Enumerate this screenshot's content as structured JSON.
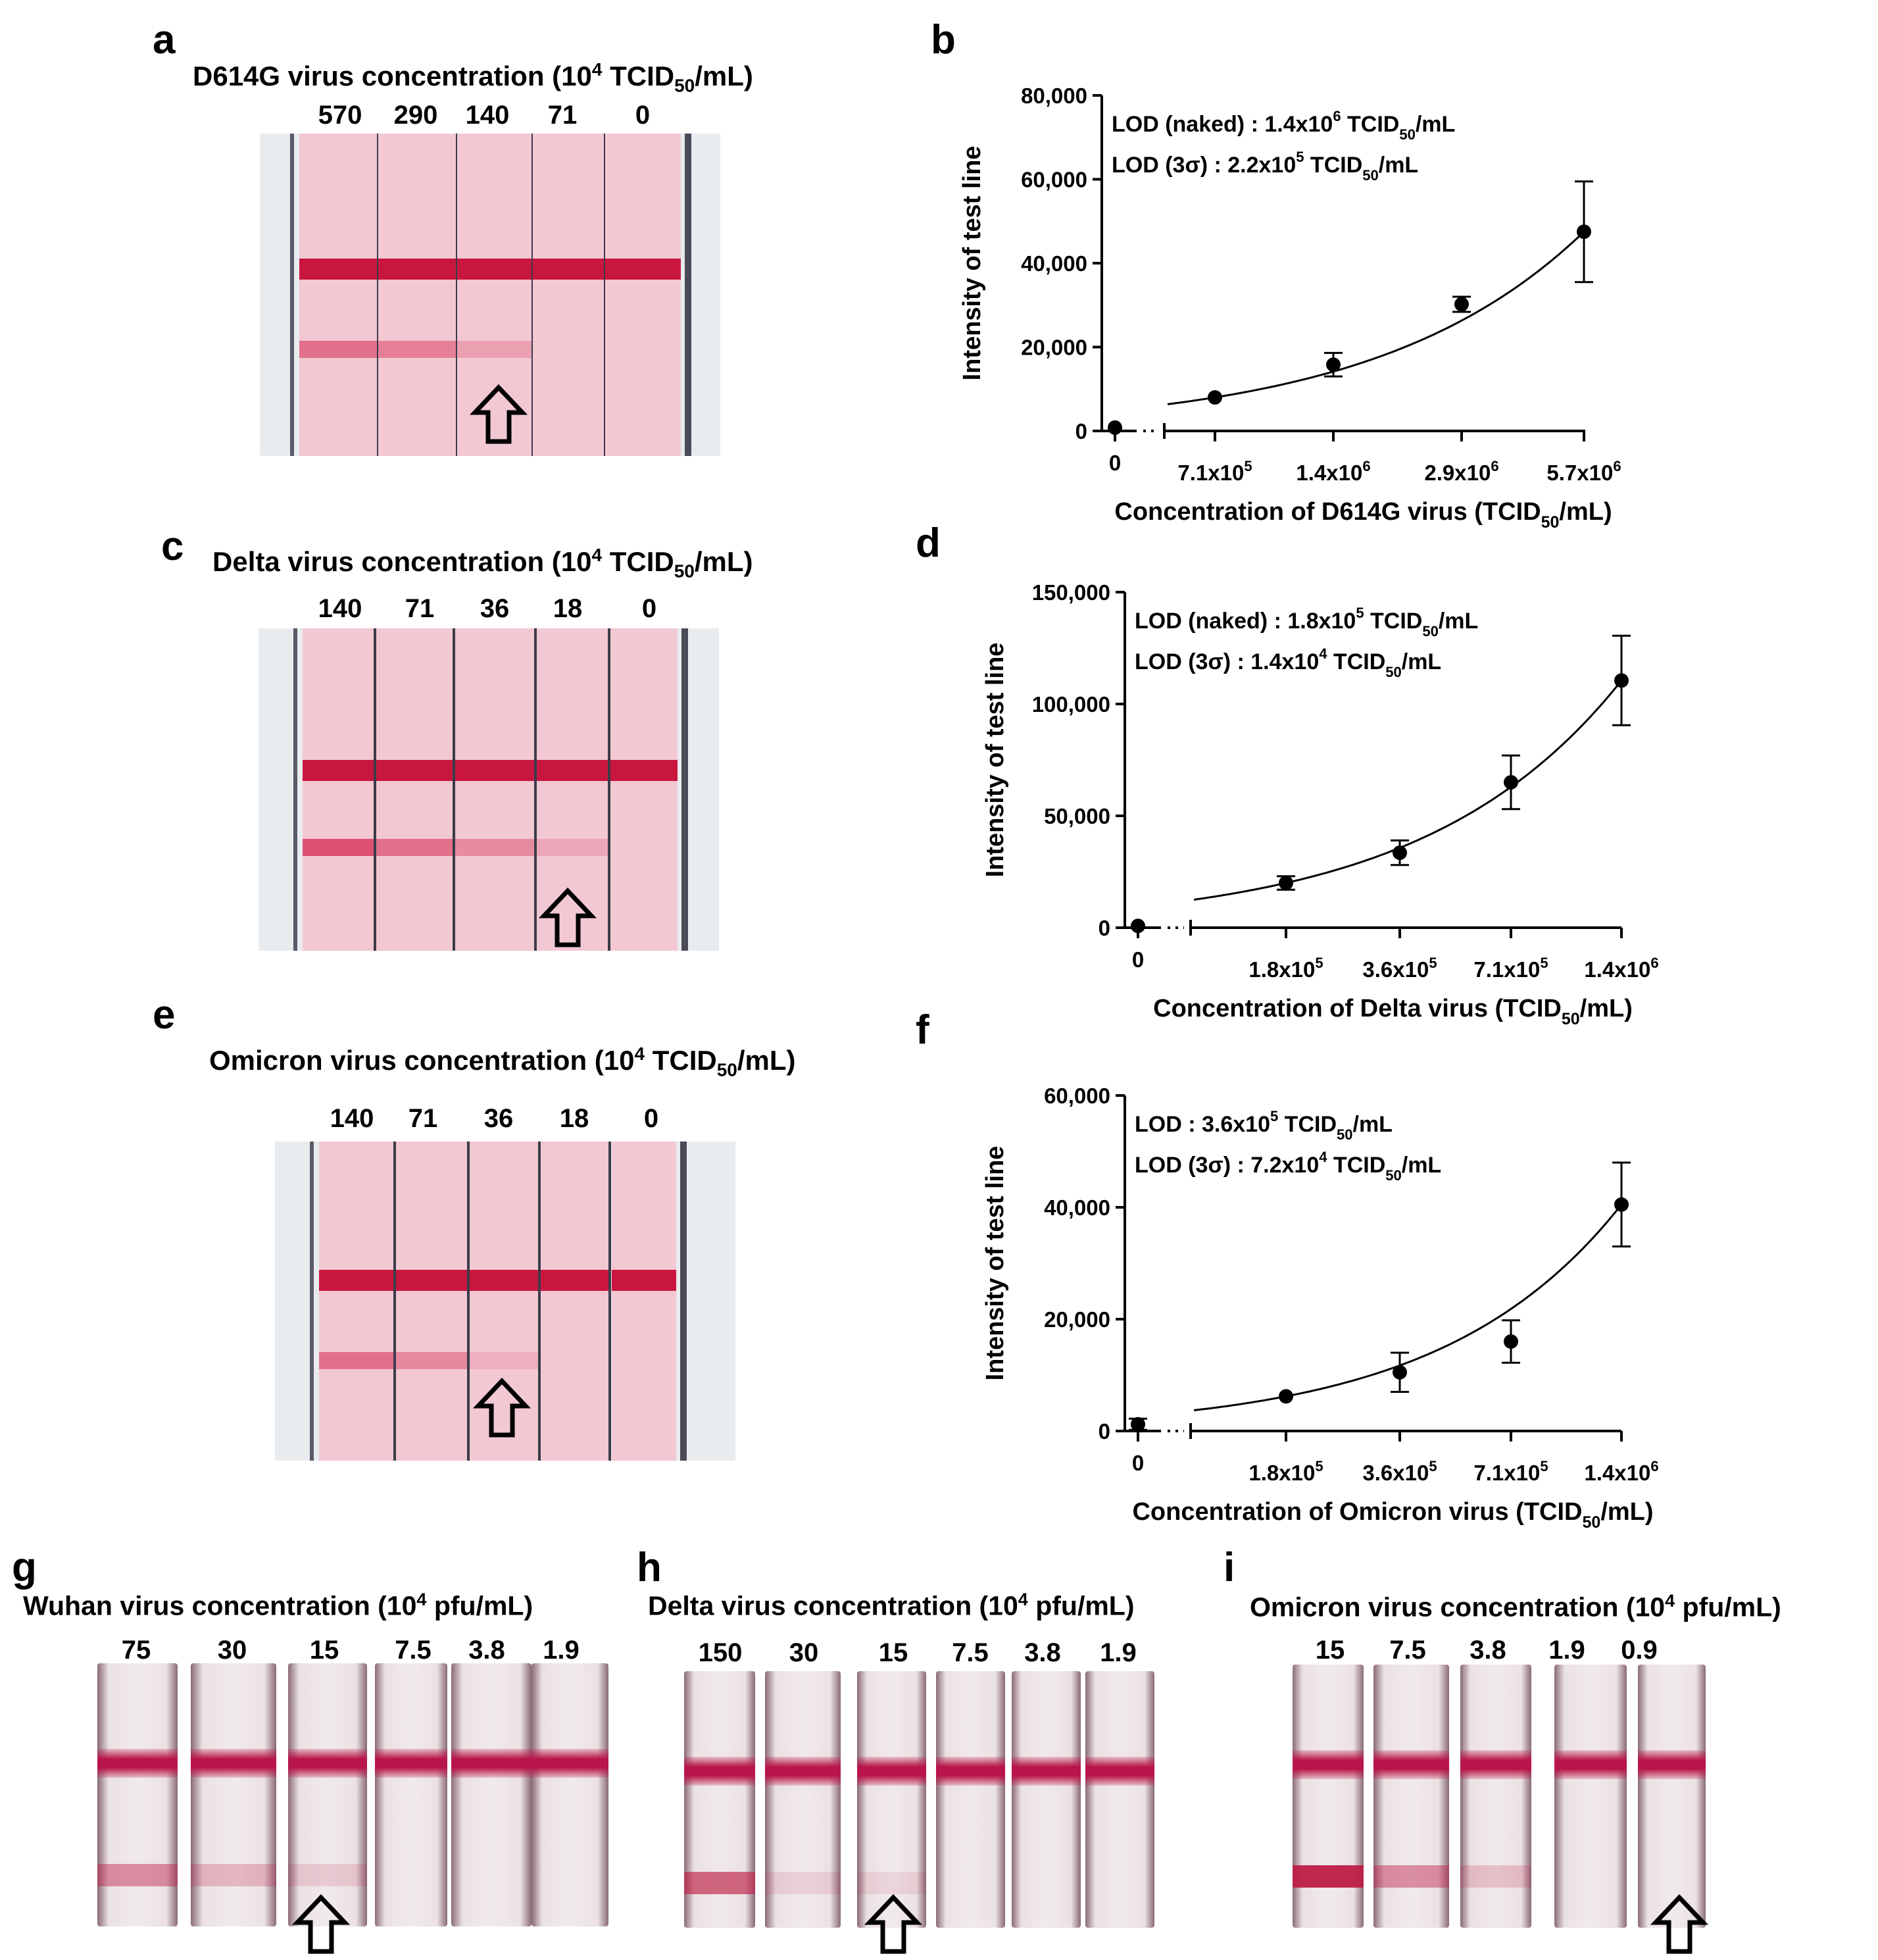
{
  "panels_photo": [
    {
      "id": "a",
      "label": "a",
      "title": "D614G virus concentration (10",
      "title_sup": "4",
      "title_mid": " TCID",
      "title_sub": "50",
      "title_end": "/mL)",
      "concentrations": [
        "570",
        "290",
        "140",
        "71",
        "0"
      ]
    },
    {
      "id": "c",
      "label": "c",
      "title": "Delta virus concentration (10",
      "title_sup": "4",
      "title_mid": " TCID",
      "title_sub": "50",
      "title_end": "/mL)",
      "concentrations": [
        "140",
        "71",
        "36",
        "18",
        "0"
      ]
    },
    {
      "id": "e",
      "label": "e",
      "title": "Omicron virus concentration (10",
      "title_sup": "4",
      "title_mid": " TCID",
      "title_sub": "50",
      "title_end": "/mL)",
      "concentrations": [
        "140",
        "71",
        "36",
        "18",
        "0"
      ]
    }
  ],
  "panels_bottom": [
    {
      "id": "g",
      "label": "g",
      "title": "Wuhan virus concentration (10",
      "title_sup": "4",
      "title_end": " pfu/mL)",
      "concentrations": [
        "75",
        "30",
        "15",
        "7.5",
        "3.8",
        "1.9"
      ]
    },
    {
      "id": "h",
      "label": "h",
      "title": "Delta virus concentration (10",
      "title_sup": "4",
      "title_end": " pfu/mL)",
      "concentrations": [
        "150",
        "30",
        "15",
        "7.5",
        "3.8",
        "1.9"
      ]
    },
    {
      "id": "i",
      "label": "i",
      "title": "Omicron virus concentration (10",
      "title_sup": "4",
      "title_end": " pfu/mL)",
      "concentrations": [
        "15",
        "7.5",
        "3.8",
        "1.9",
        "0.9"
      ]
    }
  ],
  "chart_data": [
    {
      "id": "b",
      "label": "b",
      "type": "scatter",
      "x_ticks": [
        "0",
        "7.1x10^5",
        "1.4x10^6",
        "2.9x10^6",
        "5.7x10^6"
      ],
      "xlabel_main": "Concentration of D614G virus (TCID",
      "xlabel_sub": "50",
      "xlabel_end": "/mL)",
      "ylabel": "Intensity of test line",
      "y_ticks": [
        "0",
        "20,000",
        "40,000",
        "60,000",
        "80,000"
      ],
      "ylim": [
        0,
        80000
      ],
      "values": [
        800,
        8000,
        15800,
        30200,
        47500
      ],
      "errors": [
        0,
        0,
        2800,
        1800,
        12000
      ],
      "lod_lines": [
        {
          "pre": "LOD (naked) : 1.4x10",
          "sup": "6",
          "mid": " TCID",
          "sub": "50",
          "end": "/mL"
        },
        {
          "pre": "LOD (3σ)  : 2.2x10",
          "sup": "5",
          "mid": " TCID",
          "sub": "50",
          "end": "/mL"
        }
      ],
      "fit": true
    },
    {
      "id": "d",
      "label": "d",
      "type": "scatter",
      "x_ticks": [
        "0",
        "1.8x10^5",
        "3.6x10^5",
        "7.1x10^5",
        "1.4x10^6"
      ],
      "xlabel_main": "Concentration of Delta virus (TCID",
      "xlabel_sub": "50",
      "xlabel_end": "/mL)",
      "ylabel": "Intensity of test line",
      "y_ticks": [
        "0",
        "50,000",
        "100,000",
        "150,000"
      ],
      "ylim": [
        0,
        150000
      ],
      "values": [
        800,
        20000,
        33500,
        65000,
        110500
      ],
      "errors": [
        0,
        3000,
        5500,
        12000,
        20000
      ],
      "lod_lines": [
        {
          "pre": "LOD (naked) : 1.8x10",
          "sup": "5",
          "mid": " TCID",
          "sub": "50",
          "end": "/mL"
        },
        {
          "pre": "LOD (3σ)  : 1.4x10",
          "sup": "4",
          "mid": " TCID",
          "sub": "50",
          "end": "/mL"
        }
      ],
      "fit": true
    },
    {
      "id": "f",
      "label": "f",
      "type": "scatter",
      "x_ticks": [
        "0",
        "1.8x10^5",
        "3.6x10^5",
        "7.1x10^5",
        "1.4x10^6"
      ],
      "xlabel_main": "Concentration of Omicron virus (TCID",
      "xlabel_sub": "50",
      "xlabel_end": "/mL)",
      "ylabel": "Intensity of test line",
      "y_ticks": [
        "0",
        "20,000",
        "40,000",
        "60,000"
      ],
      "ylim": [
        0,
        60000
      ],
      "values": [
        1200,
        6200,
        10500,
        16000,
        40500
      ],
      "errors": [
        1000,
        0,
        3500,
        3800,
        7500
      ],
      "lod_lines": [
        {
          "pre": "LOD : 3.6x10",
          "sup": "5",
          "mid": " TCID",
          "sub": "50",
          "end": "/mL"
        },
        {
          "pre": "LOD (3σ)  : 7.2x10",
          "sup": "4",
          "mid": " TCID",
          "sub": "50",
          "end": "/mL"
        }
      ],
      "fit": true
    }
  ]
}
